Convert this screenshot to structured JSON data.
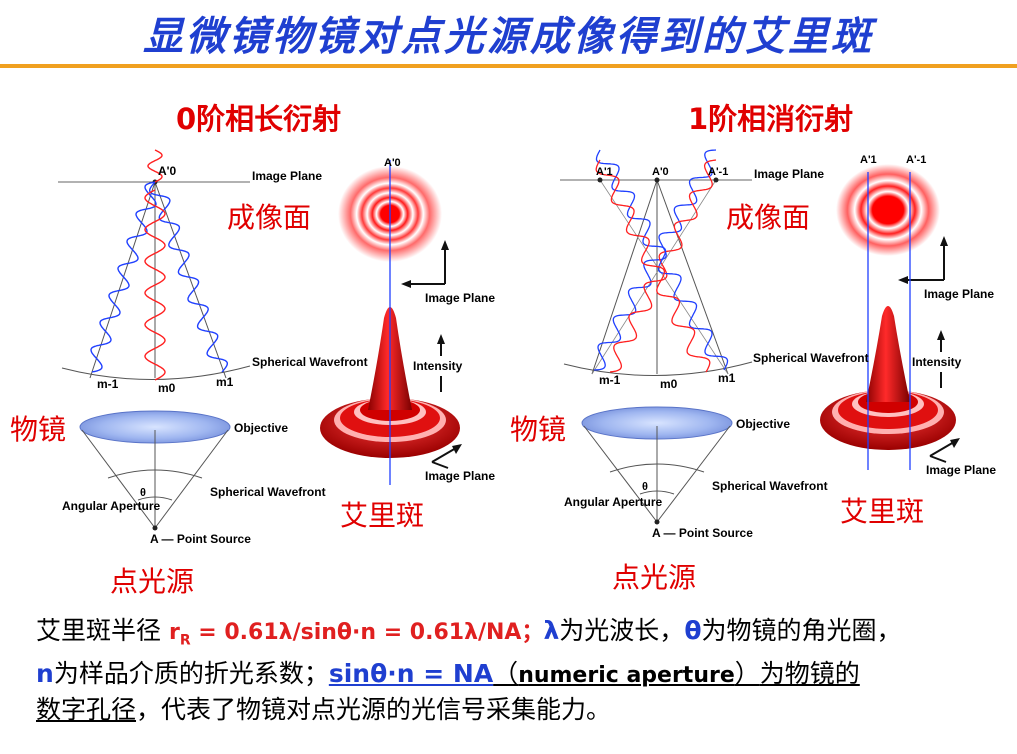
{
  "title": "显微镜物镜对点光源成像得到的艾里斑",
  "panels": [
    {
      "heading": "0阶相长衍射",
      "image_plane_label": "成像面",
      "objective_label": "物镜",
      "airy_label": "艾里斑",
      "source_label": "点光源",
      "en": {
        "image_plane": "Image Plane",
        "spherical_wavefront_top": "Spherical Wavefront",
        "objective": "Objective",
        "spherical_wavefront_bottom": "Spherical Wavefront",
        "angular_aperture": "Angular Aperture",
        "point_source": "A — Point Source",
        "theta": "θ",
        "m_minus1": "m-1",
        "m0": "m0",
        "m1": "m1",
        "A0": "A'0",
        "A0_top": "A'0",
        "intensity": "Intensity",
        "image_plane_axis1": "Image Plane",
        "image_plane_axis2": "Image Plane"
      }
    },
    {
      "heading": "1阶相消衍射",
      "image_plane_label": "成像面",
      "objective_label": "物镜",
      "airy_label": "艾里斑",
      "source_label": "点光源",
      "en": {
        "image_plane": "Image Plane",
        "spherical_wavefront_top": "Spherical Wavefront",
        "objective": "Objective",
        "spherical_wavefront_bottom": "Spherical Wavefront",
        "angular_aperture": "Angular Aperture",
        "point_source": "A — Point Source",
        "theta": "θ",
        "m_minus1": "m-1",
        "m0": "m0",
        "m1": "m1",
        "A1": "A'1",
        "A0": "A'0",
        "A_minus1": "A'-1",
        "A1_top": "A'1",
        "A_minus1_top": "A'-1",
        "intensity": "Intensity",
        "image_plane_axis1": "Image Plane",
        "image_plane_axis2": "Image Plane"
      }
    }
  ],
  "bottom": {
    "p1": "艾里斑半径",
    "formula_r": "r",
    "formula_sub": "R",
    "formula": " = 0.61λ/sinθ·n = 0.61λ/NA；",
    "lambda": "λ",
    "lambda_text": "为光波长，",
    "theta": "θ",
    "theta_text": "为物镜的角光圈，",
    "n": "n",
    "n_text": "为样品介质的折光系数；",
    "na_eq": "sinθ·n = NA",
    "paren_open": "（",
    "numeric": "numeric aperture",
    "paren_close": "）",
    "na_text1": "为物镜的",
    "na_text2": "数字孔径",
    "end_text": "，代表了物镜对点光源的光信号采集能力。"
  },
  "colors": {
    "title": "#1f3fd0",
    "red": "#e00000",
    "rule": "#f0a020",
    "blue_wave": "#2040ff",
    "red_wave": "#ff2020"
  }
}
